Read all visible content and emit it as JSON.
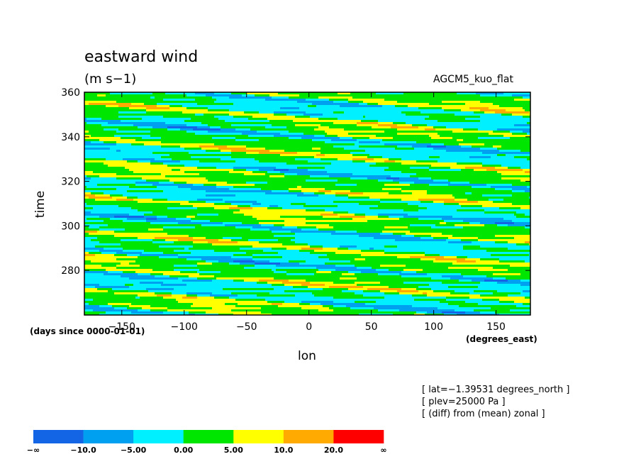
{
  "chart_data": {
    "type": "heatmap",
    "title": "eastward wind",
    "units_label": "(m s−1)",
    "model_label": "AGCM5_kuo_flat",
    "xlabel": "lon",
    "ylabel": "time",
    "x_units": "(degrees_east)",
    "y_units": "(days since 0000-01-01)",
    "xlim": [
      -180,
      177.5
    ],
    "ylim": [
      260,
      360
    ],
    "x_ticks": [
      -150,
      -100,
      -50,
      0,
      50,
      100,
      150
    ],
    "y_ticks": [
      280,
      300,
      320,
      340,
      360
    ],
    "annotations": [
      "[ lat=−1.39531 degrees_north ]",
      "[ plev=25000 Pa ]",
      "[ (diff) from (mean) zonal ]"
    ],
    "colorbar": {
      "labels": [
        "−∞",
        "−10.0",
        "−5.00",
        "0.00",
        "5.00",
        "10.0",
        "20.0",
        "∞"
      ],
      "colors": [
        "#1464e6",
        "#00a0f0",
        "#00f0ff",
        "#00e600",
        "#ffff00",
        "#ffaa00",
        "#ff0000"
      ]
    },
    "wave_bands": [
      {
        "x_start": -180,
        "x_end": 177.5,
        "value_range": [
          -10,
          20
        ]
      }
    ]
  }
}
